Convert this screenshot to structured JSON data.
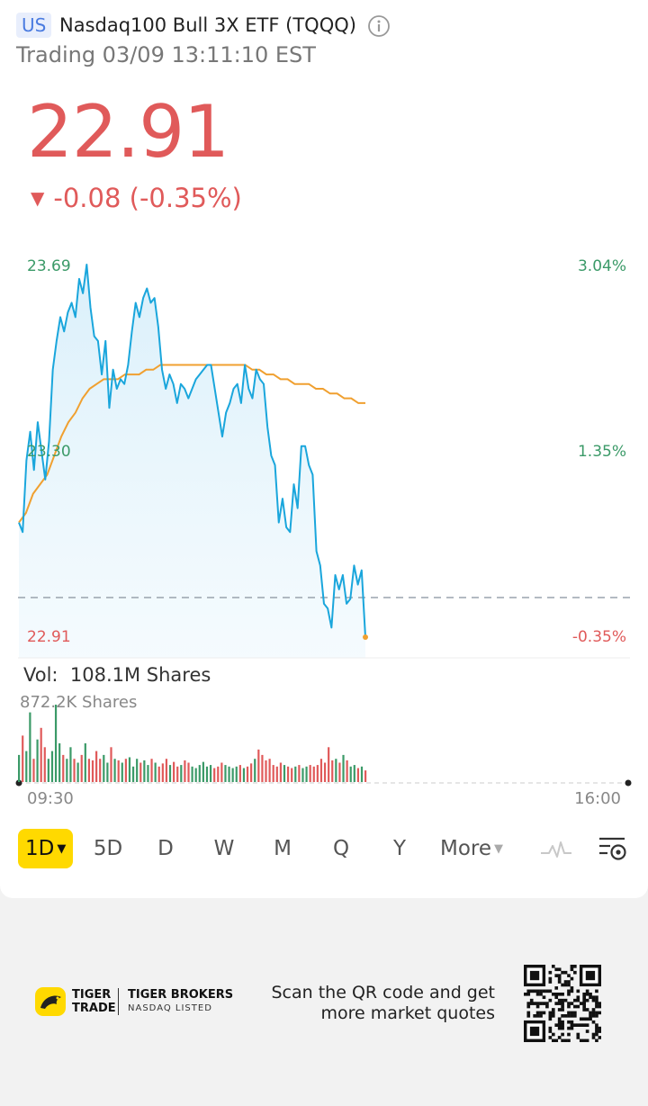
{
  "header": {
    "market_badge": "US",
    "title": "Nasdaq100 Bull 3X ETF (TQQQ)",
    "status": "Trading 03/09 13:11:10 EST"
  },
  "quote": {
    "price": "22.91",
    "change": "-0.08 (-0.35%)",
    "direction_icon": "down-triangle-icon",
    "color": "#e05a5a"
  },
  "chart_labels": {
    "price_high": "23.69",
    "price_mid": "23.30",
    "price_last": "22.91",
    "pct_high": "3.04%",
    "pct_mid": "1.35%",
    "pct_last": "-0.35%",
    "time_start": "09:30",
    "time_end": "16:00"
  },
  "volume": {
    "label": "Vol:",
    "total": "108.1M Shares",
    "scale": "872.2K Shares"
  },
  "periods": {
    "active": "1D",
    "items": [
      "5D",
      "D",
      "W",
      "M",
      "Q",
      "Y"
    ],
    "more": "More"
  },
  "footer": {
    "brand_line1": "TIGER",
    "brand_line2": "TRADE",
    "broker_name": "TIGER BROKERS",
    "broker_sub": "NASDAQ LISTED",
    "scan_line1": "Scan the QR code and get",
    "scan_line2": "more market quotes"
  },
  "colors": {
    "up": "#3b9a68",
    "down": "#e05a5a",
    "price_line": "#1aa6dc",
    "avg_line": "#f0a030",
    "active_tab": "#ffd900"
  },
  "chart_data": {
    "type": "line",
    "title": "",
    "xlabel": "",
    "ylabel": "",
    "x_range": [
      "09:30",
      "16:00"
    ],
    "ylim": [
      22.91,
      23.69
    ],
    "prev_close": 22.99,
    "series": [
      {
        "values": [
          23.15,
          23.13,
          23.28,
          23.34,
          23.26,
          23.36,
          23.3,
          23.24,
          23.32,
          23.47,
          23.53,
          23.58,
          23.55,
          23.59,
          23.61,
          23.58,
          23.66,
          23.63,
          23.69,
          23.6,
          23.54,
          23.53,
          23.46,
          23.53,
          23.39,
          23.47,
          23.43,
          23.45,
          23.44,
          23.48,
          23.55,
          23.61,
          23.58,
          23.62,
          23.64,
          23.61,
          23.62,
          23.56,
          23.47,
          23.43,
          23.46,
          23.44,
          23.4,
          23.44,
          23.43,
          23.41,
          23.43,
          23.45,
          23.46,
          23.47,
          23.48,
          23.48,
          23.43,
          23.38,
          23.33,
          23.38,
          23.4,
          23.43,
          23.44,
          23.4,
          23.48,
          23.43,
          23.41,
          23.47,
          23.45,
          23.44,
          23.35,
          23.29,
          23.27,
          23.15,
          23.2,
          23.14,
          23.13,
          23.23,
          23.18,
          23.31,
          23.31,
          23.27,
          23.25,
          23.09,
          23.06,
          22.98,
          22.97,
          22.93,
          23.04,
          23.01,
          23.04,
          22.98,
          22.99,
          23.06,
          23.02,
          23.05,
          22.91
        ]
      },
      {
        "values": [
          23.15,
          23.17,
          23.21,
          23.23,
          23.25,
          23.29,
          23.33,
          23.36,
          23.38,
          23.41,
          23.43,
          23.44,
          23.45,
          23.45,
          23.45,
          23.46,
          23.46,
          23.46,
          23.47,
          23.47,
          23.48,
          23.48,
          23.48,
          23.48,
          23.48,
          23.48,
          23.48,
          23.48,
          23.48,
          23.48,
          23.48,
          23.48,
          23.48,
          23.47,
          23.47,
          23.46,
          23.46,
          23.45,
          23.45,
          23.44,
          23.44,
          23.44,
          23.43,
          23.43,
          23.42,
          23.42,
          23.41,
          23.41,
          23.4,
          23.4
        ]
      }
    ],
    "volume": [
      0.35,
      0.6,
      0.4,
      0.9,
      0.3,
      0.55,
      0.7,
      0.45,
      0.3,
      0.4,
      1.0,
      0.5,
      0.35,
      0.3,
      0.45,
      0.3,
      0.25,
      0.35,
      0.5,
      0.3,
      0.28,
      0.4,
      0.3,
      0.35,
      0.25,
      0.45,
      0.3,
      0.28,
      0.25,
      0.3,
      0.32,
      0.2,
      0.3,
      0.25,
      0.28,
      0.22,
      0.3,
      0.25,
      0.2,
      0.24,
      0.3,
      0.22,
      0.26,
      0.2,
      0.22,
      0.28,
      0.25,
      0.2,
      0.18,
      0.22,
      0.26,
      0.2,
      0.22,
      0.18,
      0.2,
      0.25,
      0.22,
      0.2,
      0.18,
      0.2,
      0.22,
      0.18,
      0.2,
      0.24,
      0.3,
      0.42,
      0.35,
      0.28,
      0.3,
      0.22,
      0.2,
      0.25,
      0.22,
      0.2,
      0.18,
      0.2,
      0.22,
      0.18,
      0.2,
      0.22,
      0.2,
      0.22,
      0.3,
      0.25,
      0.45,
      0.28,
      0.3,
      0.25,
      0.35,
      0.28,
      0.2,
      0.22,
      0.18,
      0.2,
      0.15
    ]
  }
}
